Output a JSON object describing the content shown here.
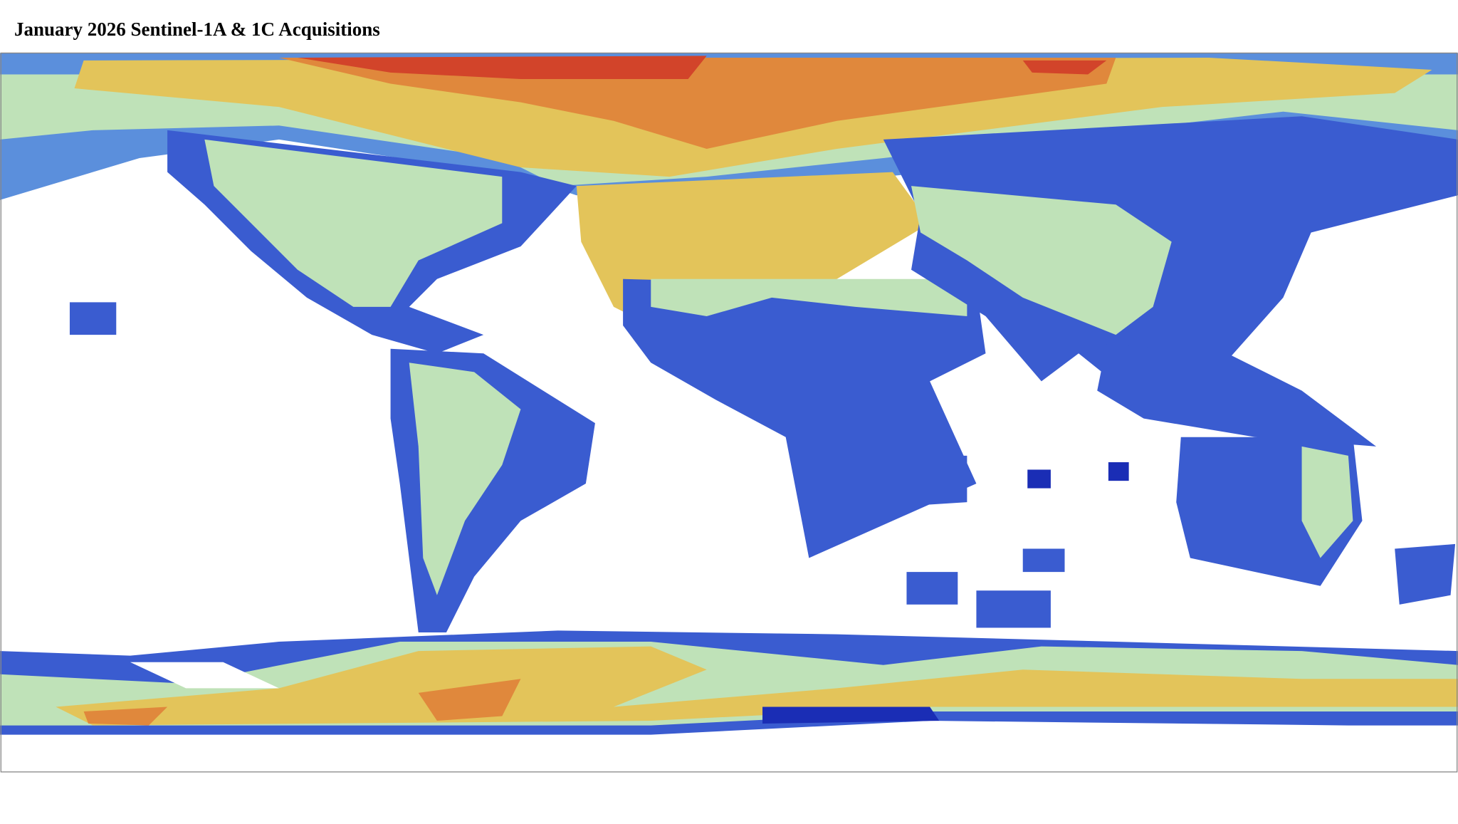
{
  "title": "January 2026 Sentinel-1A & 1C Acquisitions",
  "map": {
    "projection": "equirectangular",
    "colors": {
      "highest": "#d2442a",
      "high": "#e0883c",
      "medium_high": "#e3c45a",
      "medium": "#bfe2b8",
      "medium_low": "#5b8fdc",
      "low": "#3a5cd0",
      "lowest": "#1a2db5",
      "no_data": "#ffffff",
      "coastline": "#222222"
    }
  }
}
